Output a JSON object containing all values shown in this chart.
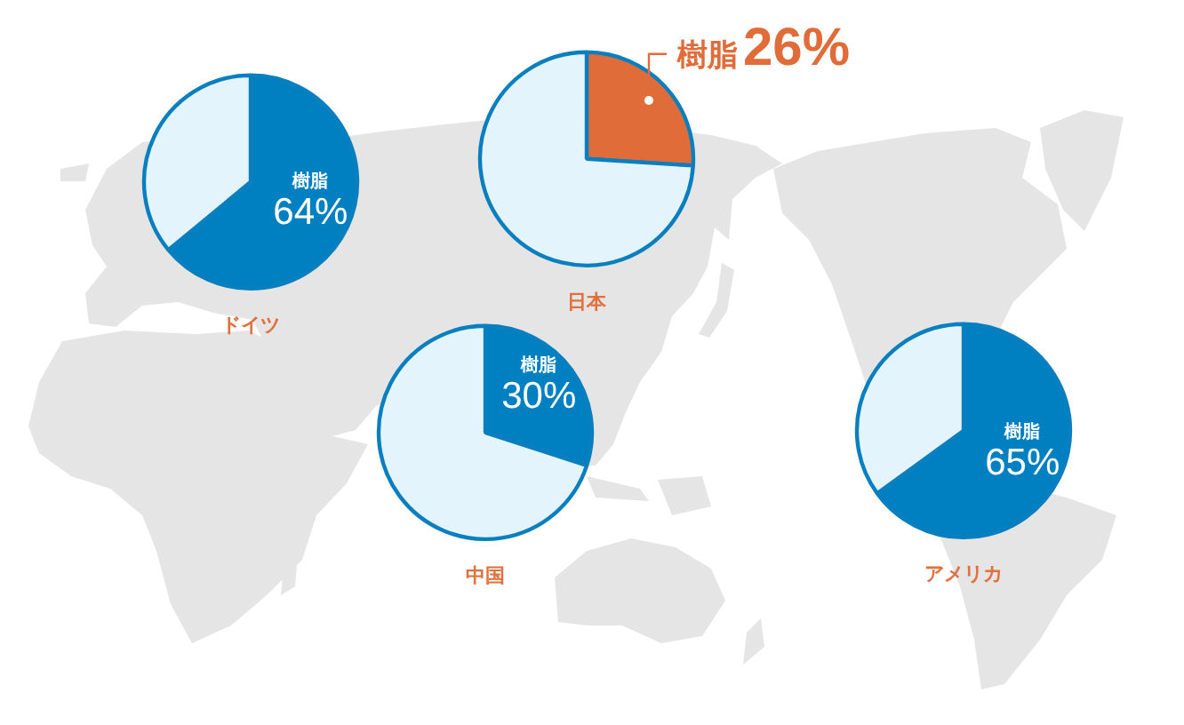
{
  "chart_data": [
    {
      "type": "pie",
      "title": "ドイツ",
      "categories": [
        "樹脂",
        null
      ],
      "values": [
        64,
        36
      ],
      "colors": [
        "#0080c0",
        "#e4f4fc"
      ],
      "value_labels": [
        "64%",
        null
      ]
    },
    {
      "type": "pie",
      "title": "日本",
      "categories": [
        "樹脂",
        null
      ],
      "values": [
        26,
        74
      ],
      "colors": [
        "#e06c3a",
        "#e4f4fc"
      ],
      "value_labels": [
        "26%",
        null
      ]
    },
    {
      "type": "pie",
      "title": "中国",
      "categories": [
        "樹脂",
        null
      ],
      "values": [
        30,
        70
      ],
      "colors": [
        "#0080c0",
        "#e4f4fc"
      ],
      "value_labels": [
        "30%",
        null
      ]
    },
    {
      "type": "pie",
      "title": "アメリカ",
      "categories": [
        "樹脂",
        null
      ],
      "values": [
        65,
        35
      ],
      "colors": [
        "#0080c0",
        "#e4f4fc"
      ],
      "value_labels": [
        "65%",
        null
      ]
    }
  ]
}
